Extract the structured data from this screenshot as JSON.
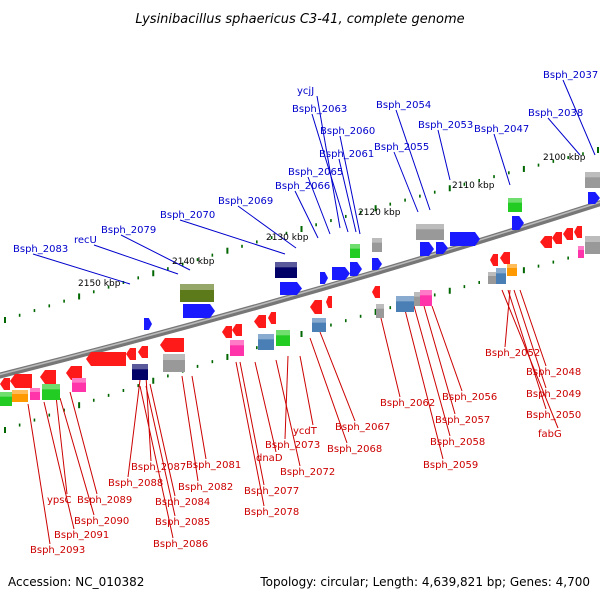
{
  "title": "Lysinibacillus sphaericus C3-41, complete genome",
  "footer": {
    "accession": "Accession: NC_010382",
    "summary": "Topology: circular; Length: 4,639,821 bp; Genes: 4,700"
  },
  "ticks": [
    "2100 kbp",
    "2110 kbp",
    "2120 kbp",
    "2130 kbp",
    "2140 kbp",
    "2150 kbp"
  ],
  "top_labels": [
    "Bsph_2037",
    "Bsph_2038",
    "Bsph_2047",
    "Bsph_2053",
    "Bsph_2054",
    "Bsph_2055",
    "ycjJ",
    "Bsph_2063",
    "Bsph_2060",
    "Bsph_2061",
    "Bsph_2065",
    "Bsph_2066",
    "Bsph_2069",
    "Bsph_2070",
    "Bsph_2079",
    "recU",
    "Bsph_2083"
  ],
  "bottom_labels": [
    "Bsph_2052",
    "Bsph_2048",
    "Bsph_2049",
    "Bsph_2050",
    "fabG",
    "Bsph_2056",
    "Bsph_2057",
    "Bsph_2058",
    "Bsph_2059",
    "Bsph_2062",
    "Bsph_2067",
    "Bsph_2068",
    "ycdT",
    "Bsph_2073",
    "Bsph_2072",
    "dnaD",
    "Bsph_2077",
    "Bsph_2078",
    "Bsph_2081",
    "Bsph_2082",
    "Bsph_2087",
    "Bsph_2088",
    "Bsph_2084",
    "Bsph_2085",
    "Bsph_2086",
    "Bsph_2089",
    "ypsC",
    "Bsph_2090",
    "Bsph_2091",
    "Bsph_2093"
  ],
  "colors": {
    "blue_gene": "#1a1aff",
    "red_gene": "#ff1a1a",
    "green_gene": "#22cc22",
    "gray_gene": "#999999",
    "magenta_gene": "#ff33aa",
    "navy_gene": "#000066",
    "olive_gene": "#5c7a1a",
    "steel_gene": "#4a7fb5",
    "orange_gene": "#ff9900",
    "tick_green": "#006600",
    "backbone": "#888888",
    "label_blue": "#0000cc",
    "label_red": "#cc0000"
  }
}
